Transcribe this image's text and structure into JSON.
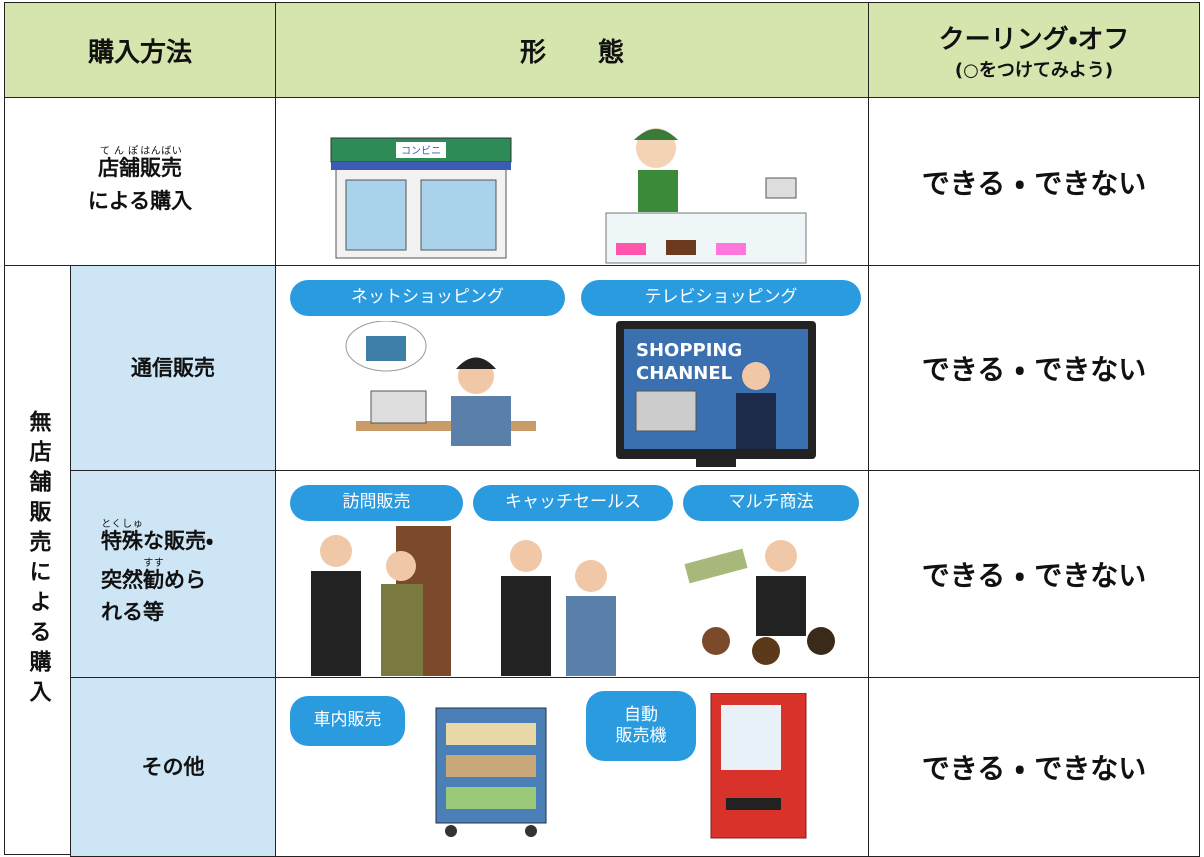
{
  "header": {
    "method": "購入方法",
    "form": "形　　態",
    "cooling_off": "クーリング・オフ",
    "cooling_off_note": "(○をつけてみよう)"
  },
  "rows": [
    {
      "label": [
        [
          {
            "text": "店舗",
            "ruby": "てんぽ"
          },
          {
            "text": "販売",
            "ruby": "はんばい"
          }
        ],
        [
          {
            "text": "による購入"
          }
        ]
      ],
      "illustration_texts": [
        "コンビニ"
      ],
      "answer": "できる ・ できない"
    },
    {
      "group": "無店舗販売による購入",
      "subrows": [
        {
          "label": [
            [
              {
                "text": "通信販売"
              }
            ]
          ],
          "forms": [
            "ネットショッピング",
            "テレビショッピング"
          ],
          "illustration_texts": [
            "SHOPPING",
            "CHANNEL"
          ],
          "answer": "できる ・ できない"
        },
        {
          "label": [
            [
              {
                "text": "特殊",
                "ruby": "とくしゅ"
              },
              {
                "text": "な販売・"
              }
            ],
            [
              {
                "text": "突然"
              },
              {
                "text": "勧",
                "ruby": "すす"
              },
              {
                "text": "めら"
              }
            ],
            [
              {
                "text": "れる等"
              }
            ]
          ],
          "forms": [
            "訪問販売",
            "キャッチセールス",
            "マルチ商法"
          ],
          "answer": "できる ・ できない"
        },
        {
          "label": [
            [
              {
                "text": "その他"
              }
            ]
          ],
          "forms": [
            "車内販売",
            "自動\n販売機"
          ],
          "answer": "できる ・ できない"
        }
      ]
    }
  ]
}
